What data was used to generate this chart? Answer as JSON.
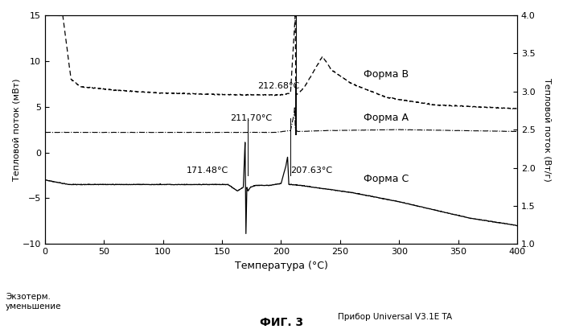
{
  "xlim": [
    0,
    400
  ],
  "ylim_left": [
    -10,
    15
  ],
  "ylim_right": [
    1.0,
    4.0
  ],
  "xlabel": "Температура (°C)",
  "ylabel_left": "Тепловой поток (мВт)",
  "ylabel_right": "Тепловой поток (Вт/г)",
  "title": "ФИГ. 3",
  "bottom_left_text": "Экзотерм.\nуменьшение",
  "bottom_right_text": "Прибор Universal V3.1E TA",
  "annotation_B": "212.68°C",
  "annotation_A": "211.70°C",
  "annotation_C1": "171.48°C",
  "annotation_C2": "207.63°C",
  "label_B": "Форма B",
  "label_A": "Форма A",
  "label_C": "Форма C",
  "xticks": [
    0,
    50,
    100,
    150,
    200,
    250,
    300,
    350,
    400
  ],
  "yticks_left": [
    -10,
    -5,
    0,
    5,
    10,
    15
  ],
  "yticks_right": [
    1.0,
    1.5,
    2.0,
    2.5,
    3.0,
    3.5,
    4.0
  ]
}
